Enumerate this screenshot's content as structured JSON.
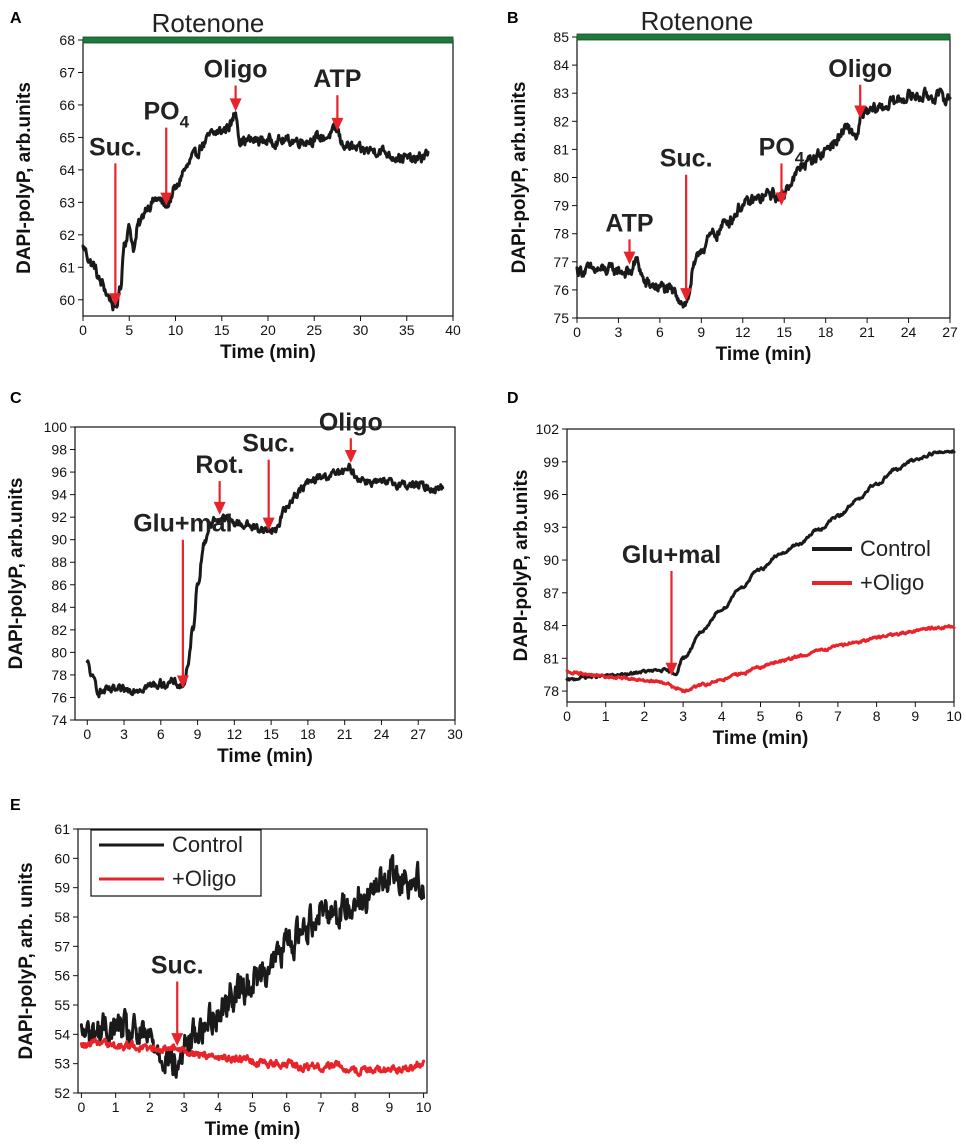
{
  "figure": {
    "panel_letters": [
      "A",
      "B",
      "C",
      "D",
      "E"
    ]
  },
  "colors": {
    "black_trace": "#1a1a1a",
    "red_trace": "#e8242a",
    "arrow": "#e8242a",
    "rotenone_bar": "#1f7a3c"
  },
  "chart_data": [
    {
      "id": "A",
      "type": "line",
      "xlabel": "Time (min)",
      "ylabel": "DAPI-polyP, arb.units",
      "xlim": [
        0,
        40
      ],
      "ylim": [
        59.5,
        68
      ],
      "xticks": [
        0,
        5,
        10,
        15,
        20,
        25,
        30,
        35,
        40
      ],
      "yticks": [
        60,
        61,
        62,
        63,
        64,
        65,
        66,
        67,
        68
      ],
      "bar_label": "Rotenone",
      "bar_range": [
        0,
        40
      ],
      "annotations": [
        {
          "text": "Suc.",
          "x": 3.5,
          "tip_y": 59.8,
          "tail_y": 64.2
        },
        {
          "text": "PO",
          "sub": "4",
          "x": 9.0,
          "tip_y": 62.9,
          "tail_y": 65.3
        },
        {
          "text": "Oligo",
          "x": 16.5,
          "tip_y": 65.8,
          "tail_y": 66.6
        },
        {
          "text": "ATP",
          "x": 27.5,
          "tip_y": 65.2,
          "tail_y": 66.3
        }
      ],
      "series": [
        {
          "color": "#1a1a1a",
          "noise": 0.15,
          "x": [
            0,
            1,
            2,
            2.8,
            3.5,
            4,
            4.5,
            5,
            5.5,
            6,
            7,
            8,
            9,
            10,
            11,
            12,
            13,
            14,
            15,
            16,
            16.5,
            17,
            18,
            20,
            22,
            24,
            26,
            27.5,
            28,
            30,
            32,
            34,
            36,
            37.3
          ],
          "y": [
            61.6,
            61.1,
            60.5,
            60.1,
            59.7,
            60.3,
            61.8,
            62.2,
            61.6,
            62.3,
            62.9,
            63.1,
            62.9,
            63.4,
            64.0,
            64.4,
            64.8,
            65.1,
            65.2,
            65.4,
            65.8,
            64.9,
            64.9,
            64.9,
            64.9,
            64.9,
            65.0,
            65.2,
            64.8,
            64.6,
            64.6,
            64.4,
            64.3,
            64.5
          ]
        }
      ]
    },
    {
      "id": "B",
      "type": "line",
      "xlabel": "Time (min)",
      "ylabel": "DAPI-polyP, arb.units",
      "xlim": [
        0,
        27
      ],
      "ylim": [
        75,
        85
      ],
      "xticks": [
        0,
        3,
        6,
        9,
        12,
        15,
        18,
        21,
        24,
        27
      ],
      "yticks": [
        75,
        76,
        77,
        78,
        79,
        80,
        81,
        82,
        83,
        84,
        85
      ],
      "bar_label": "Rotenone",
      "bar_range": [
        0,
        27
      ],
      "annotations": [
        {
          "text": "ATP",
          "x": 3.8,
          "tip_y": 76.9,
          "tail_y": 77.8
        },
        {
          "text": "Suc.",
          "x": 7.9,
          "tip_y": 75.6,
          "tail_y": 80.1
        },
        {
          "text": "PO",
          "sub": "4",
          "x": 14.8,
          "tip_y": 79.0,
          "tail_y": 80.5
        },
        {
          "text": "Oligo",
          "x": 20.5,
          "tip_y": 82.1,
          "tail_y": 83.3
        }
      ],
      "series": [
        {
          "color": "#1a1a1a",
          "noise": 0.2,
          "x": [
            0,
            1,
            2,
            3,
            3.8,
            4.3,
            5,
            6,
            7,
            7.9,
            8.5,
            9,
            10,
            11,
            12,
            13,
            14,
            14.8,
            15.5,
            16.5,
            17.5,
            18.5,
            19.5,
            20.3,
            20.6,
            21,
            22,
            23,
            24,
            25,
            26,
            27
          ],
          "y": [
            76.7,
            76.7,
            76.7,
            76.7,
            76.6,
            77.0,
            76.2,
            76.1,
            75.9,
            75.5,
            76.8,
            77.5,
            78.0,
            78.5,
            79.0,
            79.2,
            79.4,
            79.3,
            79.9,
            80.5,
            80.8,
            81.2,
            81.7,
            81.5,
            82.2,
            82.3,
            82.5,
            82.7,
            82.9,
            82.9,
            82.9,
            82.8
          ]
        }
      ]
    },
    {
      "id": "C",
      "type": "line",
      "xlabel": "Time (min)",
      "ylabel": "DAPI-polyP, arb.units",
      "xlim": [
        -1,
        30
      ],
      "ylim": [
        74,
        100
      ],
      "xticks": [
        0,
        3,
        6,
        9,
        12,
        15,
        18,
        21,
        24,
        27,
        30
      ],
      "yticks": [
        74,
        76,
        78,
        80,
        82,
        84,
        86,
        88,
        90,
        92,
        94,
        96,
        98,
        100
      ],
      "annotations": [
        {
          "text": "Glu+mal",
          "x": 7.8,
          "tip_y": 76.8,
          "tail_y": 90.0
        },
        {
          "text": "Rot.",
          "x": 10.8,
          "tip_y": 92.2,
          "tail_y": 95.2
        },
        {
          "text": "Suc.",
          "x": 14.8,
          "tip_y": 90.8,
          "tail_y": 97.1
        },
        {
          "text": "Oligo",
          "x": 21.5,
          "tip_y": 96.8,
          "tail_y": 99.0
        }
      ],
      "series": [
        {
          "color": "#1a1a1a",
          "noise": 0.35,
          "x": [
            0,
            0.5,
            1,
            2,
            3,
            4,
            5,
            6,
            7,
            7.8,
            8.2,
            8.6,
            9,
            9.5,
            10,
            10.5,
            11,
            12,
            13,
            14,
            14.8,
            15.5,
            16,
            17,
            18,
            19,
            20,
            21,
            21.5,
            22,
            23,
            24,
            25,
            26,
            27,
            28,
            29
          ],
          "y": [
            79.0,
            77.5,
            76.5,
            76.6,
            76.6,
            76.8,
            77.0,
            77.2,
            77.3,
            77.0,
            78.5,
            82.0,
            86.0,
            89.5,
            91.3,
            91.8,
            91.9,
            91.5,
            91.3,
            91.0,
            90.8,
            91.0,
            92.5,
            94.0,
            95.0,
            95.5,
            95.8,
            96.0,
            96.3,
            95.5,
            95.2,
            95.0,
            95.0,
            94.9,
            94.8,
            94.6,
            94.6
          ]
        }
      ]
    },
    {
      "id": "D",
      "type": "line",
      "xlabel": "Time (min)",
      "ylabel": "DAPI-polyP, arb.units",
      "xlim": [
        0,
        10
      ],
      "ylim": [
        77,
        102
      ],
      "xticks": [
        0,
        1,
        2,
        3,
        4,
        5,
        6,
        7,
        8,
        9,
        10
      ],
      "yticks": [
        78,
        81,
        84,
        87,
        90,
        93,
        96,
        99,
        102
      ],
      "legend": {
        "position": "right",
        "entries": [
          "Control",
          "+Oligo"
        ]
      },
      "annotations": [
        {
          "text": "Glu+mal",
          "x": 2.7,
          "tip_y": 79.4,
          "tail_y": 89.0
        }
      ],
      "series": [
        {
          "name": "Control",
          "color": "#1a1a1a",
          "noise": 0.12,
          "x": [
            0,
            0.5,
            1,
            1.5,
            2,
            2.5,
            2.8,
            3,
            3.5,
            4,
            4.5,
            5,
            5.5,
            6,
            6.5,
            7,
            7.5,
            8,
            8.5,
            9,
            9.5,
            10
          ],
          "y": [
            79.0,
            79.3,
            79.4,
            79.5,
            79.8,
            79.9,
            79.6,
            81.0,
            83.5,
            85.5,
            87.5,
            89.2,
            90.5,
            91.5,
            92.8,
            94.0,
            95.5,
            97.0,
            98.3,
            99.2,
            99.8,
            100.0
          ]
        },
        {
          "name": "+Oligo",
          "color": "#e8242a",
          "noise": 0.12,
          "x": [
            0,
            0.5,
            1,
            1.5,
            2,
            2.5,
            2.8,
            3,
            3.5,
            4,
            4.5,
            5,
            5.5,
            6,
            6.5,
            7,
            7.5,
            8,
            8.5,
            9,
            9.5,
            10
          ],
          "y": [
            79.8,
            79.5,
            79.3,
            79.2,
            79.0,
            78.8,
            78.3,
            78.0,
            78.6,
            79.0,
            79.6,
            80.2,
            80.7,
            81.2,
            81.7,
            82.1,
            82.5,
            82.9,
            83.2,
            83.5,
            83.8,
            83.9
          ]
        }
      ]
    },
    {
      "id": "E",
      "type": "line",
      "xlabel": "Time (min)",
      "ylabel": "DAPI-polyP, arb. units",
      "xlim": [
        -0.1,
        10.1
      ],
      "ylim": [
        52,
        61
      ],
      "xticks": [
        0,
        1,
        2,
        3,
        4,
        5,
        6,
        7,
        8,
        9,
        10
      ],
      "yticks": [
        52,
        53,
        54,
        55,
        56,
        57,
        58,
        59,
        60,
        61
      ],
      "legend": {
        "position": "top-left",
        "entries": [
          "Control",
          "+Oligo"
        ]
      },
      "annotations": [
        {
          "text": "Suc.",
          "x": 2.8,
          "tip_y": 53.6,
          "tail_y": 55.8
        }
      ],
      "series": [
        {
          "name": "Control",
          "color": "#1a1a1a",
          "noise": 0.5,
          "x": [
            0,
            0.5,
            1,
            1.5,
            2,
            2.5,
            2.8,
            3,
            3.5,
            4,
            4.5,
            5,
            5.5,
            6,
            6.5,
            7,
            7.5,
            8,
            8.5,
            9,
            9.5,
            10
          ],
          "y": [
            54.0,
            54.1,
            54.2,
            54.0,
            53.8,
            53.3,
            52.8,
            53.6,
            54.2,
            54.8,
            55.4,
            55.8,
            56.4,
            57.0,
            57.6,
            58.3,
            58.2,
            58.6,
            58.8,
            59.5,
            59.3,
            59.2
          ]
        },
        {
          "name": "+Oligo",
          "color": "#e8242a",
          "noise": 0.12,
          "x": [
            0,
            0.5,
            1,
            1.5,
            2,
            2.5,
            3,
            3.5,
            4,
            4.5,
            5,
            5.5,
            6,
            6.5,
            7,
            7.5,
            8,
            8.5,
            9,
            9.5,
            10
          ],
          "y": [
            53.6,
            53.7,
            53.6,
            53.6,
            53.5,
            53.5,
            53.4,
            53.3,
            53.2,
            53.2,
            53.1,
            53.0,
            53.0,
            52.9,
            52.9,
            52.9,
            52.8,
            52.8,
            52.8,
            52.8,
            53.0
          ]
        }
      ]
    }
  ]
}
